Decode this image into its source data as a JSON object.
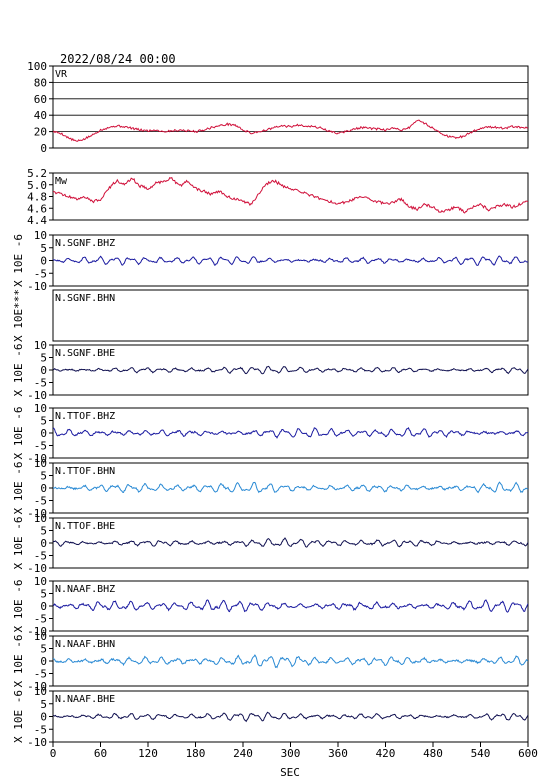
{
  "header": {
    "datetime": "2022/08/24 00:00"
  },
  "x_axis": {
    "label": "SEC",
    "min": 0,
    "max": 600,
    "ticks": [
      0,
      60,
      120,
      180,
      240,
      300,
      360,
      420,
      480,
      540,
      600
    ]
  },
  "colors": {
    "frame": "#000000",
    "vr_mw": "#d0103a",
    "bhz": "#1a1aa0",
    "bhn": "#2a8ad4",
    "bhe": "#101050"
  },
  "chart_data": [
    {
      "type": "line",
      "label": "VR",
      "ylim": [
        0,
        100
      ],
      "yticks": [
        "100",
        "80",
        "60",
        "40",
        "20",
        "0"
      ],
      "grid": true,
      "series": [
        {
          "color_key": "vr_mw",
          "x": [
            0,
            10,
            20,
            30,
            40,
            50,
            60,
            70,
            80,
            90,
            100,
            110,
            120,
            130,
            140,
            150,
            160,
            170,
            180,
            190,
            200,
            210,
            220,
            230,
            240,
            250,
            260,
            270,
            280,
            290,
            300,
            310,
            320,
            330,
            340,
            350,
            360,
            370,
            380,
            390,
            400,
            410,
            420,
            430,
            440,
            450,
            460,
            470,
            480,
            490,
            500,
            510,
            520,
            530,
            540,
            550,
            560,
            570,
            580,
            590,
            600
          ],
          "values": [
            20,
            18,
            12,
            8,
            11,
            16,
            22,
            25,
            27,
            26,
            24,
            22,
            21,
            22,
            20,
            21,
            22,
            21,
            20,
            22,
            25,
            27,
            29,
            28,
            22,
            18,
            20,
            22,
            25,
            27,
            26,
            28,
            27,
            26,
            24,
            20,
            18,
            20,
            23,
            25,
            24,
            23,
            22,
            24,
            22,
            25,
            34,
            30,
            24,
            18,
            14,
            12,
            15,
            20,
            24,
            26,
            25,
            24,
            26,
            25,
            24
          ]
        }
      ]
    },
    {
      "type": "line",
      "label": "Mw",
      "ylim": [
        4.3,
        5.2
      ],
      "yticks": [
        "5.2",
        "5.0",
        "4.8",
        "4.6",
        "4.4"
      ],
      "grid": false,
      "series": [
        {
          "color_key": "vr_mw",
          "x": [
            0,
            10,
            20,
            30,
            40,
            50,
            60,
            70,
            80,
            90,
            100,
            110,
            120,
            130,
            140,
            150,
            160,
            170,
            180,
            190,
            200,
            210,
            220,
            230,
            240,
            250,
            260,
            270,
            280,
            290,
            300,
            310,
            320,
            330,
            340,
            350,
            360,
            370,
            380,
            390,
            400,
            410,
            420,
            430,
            440,
            450,
            460,
            470,
            480,
            490,
            500,
            510,
            520,
            530,
            540,
            550,
            560,
            570,
            580,
            590,
            600
          ],
          "values": [
            4.85,
            4.8,
            4.75,
            4.7,
            4.75,
            4.65,
            4.7,
            4.9,
            5.05,
            5.0,
            5.1,
            4.95,
            4.9,
            5.0,
            5.05,
            5.1,
            4.95,
            5.05,
            4.9,
            4.85,
            4.8,
            4.85,
            4.75,
            4.7,
            4.65,
            4.6,
            4.8,
            5.0,
            5.05,
            4.95,
            4.9,
            4.85,
            4.8,
            4.75,
            4.7,
            4.65,
            4.6,
            4.65,
            4.7,
            4.75,
            4.7,
            4.65,
            4.6,
            4.65,
            4.7,
            4.55,
            4.5,
            4.6,
            4.55,
            4.45,
            4.5,
            4.55,
            4.45,
            4.55,
            4.6,
            4.5,
            4.55,
            4.6,
            4.55,
            4.6,
            4.65
          ]
        }
      ]
    },
    {
      "type": "line",
      "label": "N.SGNF.BHZ",
      "ylabel": "X 10E -6",
      "ylim": [
        -10,
        10
      ],
      "yticks": [
        "10",
        "5",
        "0",
        "-5",
        "-10"
      ],
      "series": [
        {
          "color_key": "bhz",
          "amplitude": 1.2,
          "seed": 3
        }
      ]
    },
    {
      "type": "line",
      "label": "N.SGNF.BHN",
      "ylabel": "X 10E***",
      "ylim": [
        -10,
        10
      ],
      "yticks": [],
      "series": []
    },
    {
      "type": "line",
      "label": "N.SGNF.BHE",
      "ylabel": "X 10E -6",
      "ylim": [
        -10,
        10
      ],
      "yticks": [
        "10",
        "5",
        "0",
        "-5",
        "-10"
      ],
      "series": [
        {
          "color_key": "bhe",
          "amplitude": 1.0,
          "seed": 7
        }
      ]
    },
    {
      "type": "line",
      "label": "N.TTOF.BHZ",
      "ylabel": "X 10E -6",
      "ylim": [
        -10,
        10
      ],
      "yticks": [
        "10",
        "5",
        "0",
        "-5",
        "-10"
      ],
      "series": [
        {
          "color_key": "bhz",
          "amplitude": 1.4,
          "seed": 11
        }
      ]
    },
    {
      "type": "line",
      "label": "N.TTOF.BHN",
      "ylabel": "X 10E -6",
      "ylim": [
        -10,
        10
      ],
      "yticks": [
        "10",
        "5",
        "0",
        "-5",
        "-10"
      ],
      "series": [
        {
          "color_key": "bhn",
          "amplitude": 1.5,
          "seed": 13
        }
      ]
    },
    {
      "type": "line",
      "label": "N.TTOF.BHE",
      "ylabel": "X 10E -6",
      "ylim": [
        -10,
        10
      ],
      "yticks": [
        "10",
        "5",
        "0",
        "-5",
        "-10"
      ],
      "series": [
        {
          "color_key": "bhe",
          "amplitude": 1.2,
          "seed": 17
        }
      ]
    },
    {
      "type": "line",
      "label": "N.NAAF.BHZ",
      "ylabel": "X 10E -6",
      "ylim": [
        -10,
        10
      ],
      "yticks": [
        "10",
        "5",
        "0",
        "-5",
        "-10"
      ],
      "series": [
        {
          "color_key": "bhz",
          "amplitude": 1.6,
          "seed": 19
        }
      ]
    },
    {
      "type": "line",
      "label": "N.NAAF.BHN",
      "ylabel": "X 10E -6",
      "ylim": [
        -10,
        10
      ],
      "yticks": [
        "10",
        "5",
        "0",
        "-5",
        "-10"
      ],
      "series": [
        {
          "color_key": "bhn",
          "amplitude": 1.6,
          "seed": 23
        }
      ]
    },
    {
      "type": "line",
      "label": "N.NAAF.BHE",
      "ylabel": "X 10E -6",
      "ylim": [
        -10,
        10
      ],
      "yticks": [
        "10",
        "5",
        "0",
        "-5",
        "-10"
      ],
      "series": [
        {
          "color_key": "bhe",
          "amplitude": 1.1,
          "seed": 29
        }
      ]
    }
  ]
}
